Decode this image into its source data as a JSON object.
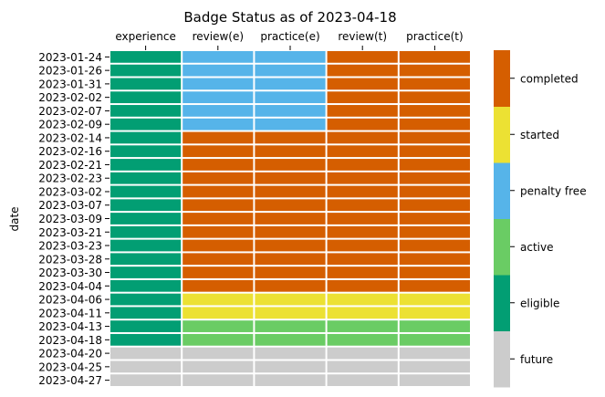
{
  "chart_data": {
    "type": "heatmap",
    "title": "Badge Status as of 2023-04-18",
    "ylabel": "date",
    "x_ticks_position": "top",
    "columns": [
      "experience",
      "review(e)",
      "practice(e)",
      "review(t)",
      "practice(t)"
    ],
    "rows": [
      "2023-01-24",
      "2023-01-26",
      "2023-01-31",
      "2023-02-02",
      "2023-02-07",
      "2023-02-09",
      "2023-02-14",
      "2023-02-16",
      "2023-02-21",
      "2023-02-23",
      "2023-03-02",
      "2023-03-07",
      "2023-03-09",
      "2023-03-21",
      "2023-03-23",
      "2023-03-28",
      "2023-03-30",
      "2023-04-04",
      "2023-04-06",
      "2023-04-11",
      "2023-04-13",
      "2023-04-18",
      "2023-04-20",
      "2023-04-25",
      "2023-04-27"
    ],
    "values": [
      [
        "eligible",
        "penalty free",
        "penalty free",
        "completed",
        "completed"
      ],
      [
        "eligible",
        "penalty free",
        "penalty free",
        "completed",
        "completed"
      ],
      [
        "eligible",
        "penalty free",
        "penalty free",
        "completed",
        "completed"
      ],
      [
        "eligible",
        "penalty free",
        "penalty free",
        "completed",
        "completed"
      ],
      [
        "eligible",
        "penalty free",
        "penalty free",
        "completed",
        "completed"
      ],
      [
        "eligible",
        "penalty free",
        "penalty free",
        "completed",
        "completed"
      ],
      [
        "eligible",
        "completed",
        "completed",
        "completed",
        "completed"
      ],
      [
        "eligible",
        "completed",
        "completed",
        "completed",
        "completed"
      ],
      [
        "eligible",
        "completed",
        "completed",
        "completed",
        "completed"
      ],
      [
        "eligible",
        "completed",
        "completed",
        "completed",
        "completed"
      ],
      [
        "eligible",
        "completed",
        "completed",
        "completed",
        "completed"
      ],
      [
        "eligible",
        "completed",
        "completed",
        "completed",
        "completed"
      ],
      [
        "eligible",
        "completed",
        "completed",
        "completed",
        "completed"
      ],
      [
        "eligible",
        "completed",
        "completed",
        "completed",
        "completed"
      ],
      [
        "eligible",
        "completed",
        "completed",
        "completed",
        "completed"
      ],
      [
        "eligible",
        "completed",
        "completed",
        "completed",
        "completed"
      ],
      [
        "eligible",
        "completed",
        "completed",
        "completed",
        "completed"
      ],
      [
        "eligible",
        "completed",
        "completed",
        "completed",
        "completed"
      ],
      [
        "eligible",
        "started",
        "started",
        "started",
        "started"
      ],
      [
        "eligible",
        "started",
        "started",
        "started",
        "started"
      ],
      [
        "eligible",
        "active",
        "active",
        "active",
        "active"
      ],
      [
        "eligible",
        "active",
        "active",
        "active",
        "active"
      ],
      [
        "future",
        "future",
        "future",
        "future",
        "future"
      ],
      [
        "future",
        "future",
        "future",
        "future",
        "future"
      ],
      [
        "future",
        "future",
        "future",
        "future",
        "future"
      ]
    ],
    "legend": {
      "position": "right",
      "categories": [
        {
          "name": "future",
          "color": "#cccccc"
        },
        {
          "name": "eligible",
          "color": "#029e73"
        },
        {
          "name": "active",
          "color": "#6acc64"
        },
        {
          "name": "penalty free",
          "color": "#56b4e9"
        },
        {
          "name": "started",
          "color": "#ece133"
        },
        {
          "name": "completed",
          "color": "#d55e00"
        }
      ]
    }
  }
}
